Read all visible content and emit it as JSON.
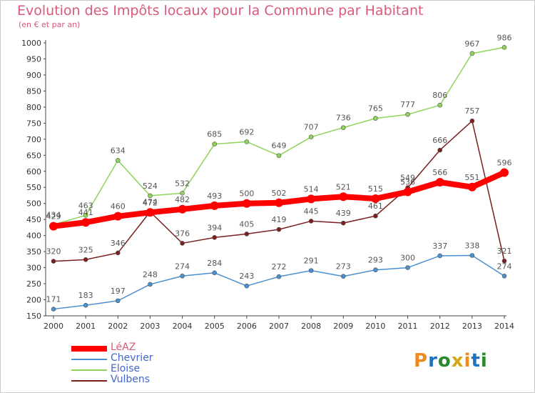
{
  "title": "Evolution des Impôts locaux pour la Commune par Habitant",
  "subtitle": "(en € et par an)",
  "logo": {
    "text": "Proxiti",
    "colors": [
      "#f08a1c",
      "#1e73be",
      "#2a8a2a",
      "#d6a417"
    ]
  },
  "chart_data": {
    "type": "line",
    "x": [
      2000,
      2001,
      2002,
      2003,
      2004,
      2005,
      2006,
      2007,
      2008,
      2009,
      2010,
      2011,
      2012,
      2013,
      2014
    ],
    "ylim": [
      150,
      1000
    ],
    "yticks": [
      150,
      200,
      250,
      300,
      350,
      400,
      450,
      500,
      550,
      600,
      650,
      700,
      750,
      800,
      850,
      900,
      950,
      1000
    ],
    "grid": false,
    "legend_position": "bottom-left",
    "series": [
      {
        "name": "Chevrier",
        "color": "#4a8fcf",
        "values": [
          171,
          183,
          197,
          248,
          274,
          284,
          243,
          272,
          291,
          273,
          293,
          300,
          337,
          338,
          274
        ]
      },
      {
        "name": "Eloise",
        "color": "#8ed45a",
        "values": [
          434,
          463,
          634,
          524,
          532,
          685,
          692,
          649,
          707,
          736,
          765,
          777,
          806,
          967,
          986
        ]
      },
      {
        "name": "Vulbens",
        "color": "#7a1e1e",
        "values": [
          320,
          325,
          346,
          474,
          376,
          394,
          405,
          419,
          445,
          439,
          461,
          549,
          666,
          757,
          321
        ]
      },
      {
        "name": "LéAZ",
        "color": "#ff0000",
        "values": [
          429,
          441,
          460,
          472,
          482,
          493,
          500,
          502,
          514,
          521,
          515,
          536,
          566,
          551,
          596
        ]
      }
    ]
  },
  "legend": [
    {
      "name": "LéAZ",
      "color": "#ff0000"
    },
    {
      "name": "Chevrier",
      "color": "#4a8fcf"
    },
    {
      "name": "Eloise",
      "color": "#8ed45a"
    },
    {
      "name": "Vulbens",
      "color": "#7a1e1e"
    }
  ]
}
